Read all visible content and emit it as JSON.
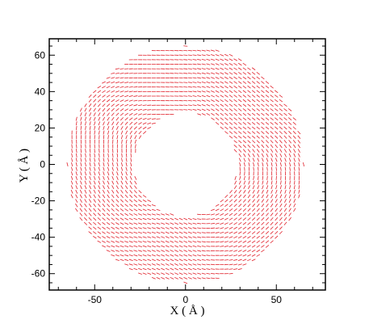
{
  "chart_data": {
    "type": "quiver",
    "title": "",
    "xlabel": "X ( Å )",
    "ylabel": "Y ( Å )",
    "xlim": [
      -75,
      77
    ],
    "ylim": [
      -69,
      69
    ],
    "x_ticks": [
      "-50",
      "0",
      "50"
    ],
    "x_tick_values": [
      -50,
      0,
      50
    ],
    "y_ticks": [
      "60",
      "40",
      "20",
      "0",
      "-20",
      "-40",
      "-60"
    ],
    "y_tick_values": [
      60,
      40,
      20,
      0,
      -20,
      -40,
      -60
    ],
    "grid": false,
    "legend": "none",
    "vector_color": "#e0202a",
    "field": {
      "shape": "annulus",
      "center": [
        0,
        0
      ],
      "inner_radius": 28,
      "outer_radius": 65,
      "spacing": 2.5,
      "arrow_length": 2.2,
      "direction": "mostly tangential, swirling"
    }
  }
}
